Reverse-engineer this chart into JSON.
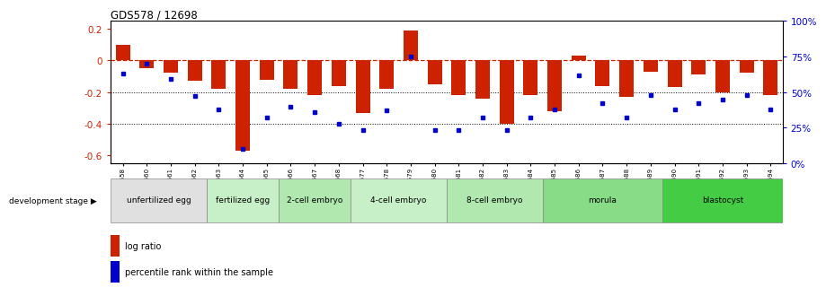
{
  "title": "GDS578 / 12698",
  "samples": [
    "GSM14658",
    "GSM14660",
    "GSM14661",
    "GSM14662",
    "GSM14663",
    "GSM14664",
    "GSM14665",
    "GSM14666",
    "GSM14667",
    "GSM14668",
    "GSM14677",
    "GSM14678",
    "GSM14679",
    "GSM14680",
    "GSM14681",
    "GSM14682",
    "GSM14683",
    "GSM14684",
    "GSM14685",
    "GSM14686",
    "GSM14687",
    "GSM14688",
    "GSM14689",
    "GSM14690",
    "GSM14691",
    "GSM14692",
    "GSM14693",
    "GSM14694"
  ],
  "log_ratio": [
    0.1,
    -0.05,
    -0.08,
    -0.13,
    -0.18,
    -0.57,
    -0.12,
    -0.18,
    -0.22,
    -0.16,
    -0.33,
    -0.18,
    0.19,
    -0.15,
    -0.22,
    -0.24,
    -0.4,
    -0.22,
    -0.32,
    0.03,
    -0.16,
    -0.23,
    -0.07,
    -0.17,
    -0.09,
    -0.2,
    -0.08,
    -0.22
  ],
  "percentile": [
    63,
    70,
    59,
    47,
    38,
    10,
    32,
    40,
    36,
    28,
    23,
    37,
    75,
    23,
    23,
    32,
    23,
    32,
    38,
    62,
    42,
    32,
    48,
    38,
    42,
    45,
    48,
    38
  ],
  "stages": [
    {
      "name": "unfertilized egg",
      "start": 0,
      "end": 4,
      "color": "#e0e0e0"
    },
    {
      "name": "fertilized egg",
      "start": 4,
      "end": 7,
      "color": "#c8f0c8"
    },
    {
      "name": "2-cell embryo",
      "start": 7,
      "end": 10,
      "color": "#b0e8b0"
    },
    {
      "name": "4-cell embryo",
      "start": 10,
      "end": 14,
      "color": "#c8f0c8"
    },
    {
      "name": "8-cell embryo",
      "start": 14,
      "end": 18,
      "color": "#b0e8b0"
    },
    {
      "name": "morula",
      "start": 18,
      "end": 23,
      "color": "#88dc88"
    },
    {
      "name": "blastocyst",
      "start": 23,
      "end": 28,
      "color": "#44cc44"
    }
  ],
  "bar_color": "#cc2200",
  "dot_color": "#0000cc",
  "dashed_line_color": "#cc2200",
  "ylim_left": [
    -0.65,
    0.25
  ],
  "ylim_right": [
    0,
    100
  ],
  "yticks_left": [
    -0.6,
    -0.4,
    -0.2,
    0.0,
    0.2
  ],
  "yticks_right": [
    0,
    25,
    50,
    75,
    100
  ],
  "background_color": "#ffffff"
}
